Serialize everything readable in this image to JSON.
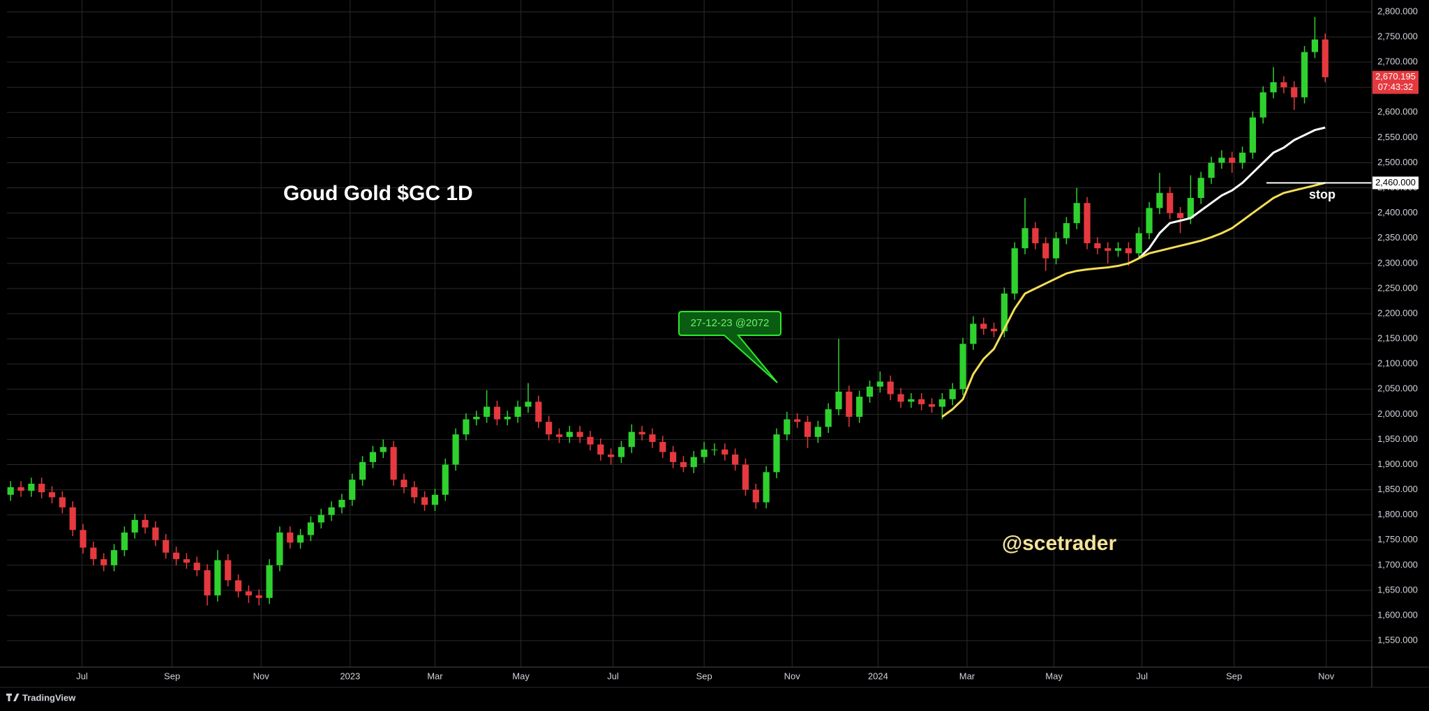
{
  "chart_data": {
    "type": "candlestick",
    "title": "Goud Gold $GC 1D",
    "watermark": "@scetrader",
    "annotation": "27-12-23 @2072",
    "stop_label": "stop",
    "brand": "TradingView",
    "countdown": "07:43:32",
    "up_color": "#2fd12f",
    "down_color": "#e5393f",
    "grid": true,
    "xlim": [
      -0.35,
      131.5
    ],
    "xticks": [
      {
        "value": 6.9,
        "label": "Jul"
      },
      {
        "value": 15.6,
        "label": "Sep"
      },
      {
        "value": 24.2,
        "label": "Nov"
      },
      {
        "value": 32.8,
        "label": "2023"
      },
      {
        "value": 41.0,
        "label": "Mar"
      },
      {
        "value": 49.3,
        "label": "May"
      },
      {
        "value": 58.2,
        "label": "Jul"
      },
      {
        "value": 67.0,
        "label": "Sep"
      },
      {
        "value": 75.5,
        "label": "Nov"
      },
      {
        "value": 83.8,
        "label": "2024"
      },
      {
        "value": 92.4,
        "label": "Mar"
      },
      {
        "value": 100.8,
        "label": "May"
      },
      {
        "value": 109.3,
        "label": "Jul"
      },
      {
        "value": 118.2,
        "label": "Sep"
      },
      {
        "value": 127.1,
        "label": "Nov"
      }
    ],
    "ylim": [
      1497.5,
      2823.5
    ],
    "yticks": [
      {
        "value": 1550,
        "label": "1,550.000"
      },
      {
        "value": 1600,
        "label": "1,600.000"
      },
      {
        "value": 1650,
        "label": "1,650.000"
      },
      {
        "value": 1700,
        "label": "1,700.000"
      },
      {
        "value": 1750,
        "label": "1,750.000"
      },
      {
        "value": 1800,
        "label": "1,800.000"
      },
      {
        "value": 1850,
        "label": "1,850.000"
      },
      {
        "value": 1900,
        "label": "1,900.000"
      },
      {
        "value": 1950,
        "label": "1,950.000"
      },
      {
        "value": 2000,
        "label": "2,000.000"
      },
      {
        "value": 2050,
        "label": "2,050.000"
      },
      {
        "value": 2100,
        "label": "2,100.000"
      },
      {
        "value": 2150,
        "label": "2,150.000"
      },
      {
        "value": 2200,
        "label": "2,200.000"
      },
      {
        "value": 2250,
        "label": "2,250.000"
      },
      {
        "value": 2300,
        "label": "2,300.000"
      },
      {
        "value": 2350,
        "label": "2,350.000"
      },
      {
        "value": 2400,
        "label": "2,400.000"
      },
      {
        "value": 2450,
        "label": "2,450.000"
      },
      {
        "value": 2500,
        "label": "2,500.000"
      },
      {
        "value": 2550,
        "label": "2,550.000"
      },
      {
        "value": 2600,
        "label": "2,600.000"
      },
      {
        "value": 2650,
        "label": "2,650.000"
      },
      {
        "value": 2700,
        "label": "2,700.000"
      },
      {
        "value": 2750,
        "label": "2,750.000"
      },
      {
        "value": 2800,
        "label": "2,800.000"
      }
    ],
    "hline": {
      "value": 2460,
      "label": "2,460.000"
    },
    "last_price": {
      "value": 2670.195,
      "label": "2,670.195"
    },
    "open": [
      1840,
      1855,
      1848,
      1862,
      1845,
      1835,
      1815,
      1770,
      1735,
      1712,
      1700,
      1730,
      1765,
      1790,
      1775,
      1750,
      1725,
      1712,
      1705,
      1690,
      1640,
      1710,
      1670,
      1648,
      1640,
      1635,
      1700,
      1765,
      1745,
      1760,
      1785,
      1800,
      1815,
      1830,
      1870,
      1905,
      1925,
      1935,
      1870,
      1855,
      1835,
      1820,
      1840,
      1900,
      1960,
      1990,
      1995,
      2015,
      1990,
      1995,
      2015,
      2025,
      1985,
      1960,
      1955,
      1965,
      1955,
      1940,
      1920,
      1915,
      1935,
      1965,
      1960,
      1945,
      1925,
      1905,
      1895,
      1915,
      1930,
      1930,
      1920,
      1900,
      1850,
      1825,
      1885,
      1960,
      1990,
      1985,
      1955,
      1975,
      2010,
      2045,
      1995,
      2035,
      2055,
      2065,
      2040,
      2025,
      2030,
      2020,
      2015,
      2030,
      2050,
      2140,
      2180,
      2170,
      2165,
      2240,
      2330,
      2370,
      2340,
      2310,
      2350,
      2380,
      2420,
      2340,
      2330,
      2325,
      2330,
      2320,
      2360,
      2410,
      2440,
      2400,
      2390,
      2430,
      2470,
      2500,
      2510,
      2500,
      2520,
      2590,
      2640,
      2660,
      2650,
      2630,
      2720,
      2745
    ],
    "high": [
      1867,
      1867,
      1874,
      1874,
      1857,
      1847,
      1827,
      1782,
      1747,
      1724,
      1742,
      1777,
      1802,
      1802,
      1787,
      1762,
      1737,
      1724,
      1717,
      1702,
      1730,
      1722,
      1682,
      1660,
      1652,
      1712,
      1777,
      1777,
      1772,
      1797,
      1812,
      1827,
      1842,
      1882,
      1917,
      1937,
      1950,
      1947,
      1882,
      1867,
      1847,
      1852,
      1912,
      1972,
      2002,
      2007,
      2048,
      2027,
      2007,
      2027,
      2062,
      2037,
      1997,
      1972,
      1977,
      1977,
      1967,
      1952,
      1932,
      1947,
      1980,
      1977,
      1972,
      1957,
      1937,
      1917,
      1927,
      1945,
      1942,
      1942,
      1932,
      1912,
      1862,
      1897,
      1972,
      2005,
      2002,
      1997,
      1987,
      2022,
      2150,
      2057,
      2047,
      2067,
      2085,
      2077,
      2052,
      2042,
      2042,
      2032,
      2042,
      2062,
      2152,
      2195,
      2192,
      2182,
      2252,
      2342,
      2430,
      2382,
      2352,
      2362,
      2392,
      2450,
      2432,
      2352,
      2342,
      2342,
      2342,
      2372,
      2422,
      2480,
      2452,
      2412,
      2475,
      2482,
      2512,
      2525,
      2522,
      2532,
      2602,
      2652,
      2690,
      2672,
      2662,
      2732,
      2790,
      2757
    ],
    "low": [
      1828,
      1836,
      1836,
      1833,
      1823,
      1803,
      1758,
      1723,
      1700,
      1688,
      1688,
      1718,
      1753,
      1763,
      1738,
      1713,
      1700,
      1693,
      1678,
      1620,
      1628,
      1658,
      1636,
      1625,
      1620,
      1623,
      1688,
      1733,
      1733,
      1748,
      1773,
      1788,
      1803,
      1818,
      1858,
      1893,
      1913,
      1858,
      1843,
      1823,
      1808,
      1808,
      1828,
      1888,
      1948,
      1978,
      1983,
      1978,
      1978,
      1983,
      2003,
      1973,
      1948,
      1943,
      1943,
      1943,
      1928,
      1908,
      1900,
      1903,
      1923,
      1948,
      1933,
      1913,
      1893,
      1885,
      1883,
      1903,
      1918,
      1908,
      1888,
      1838,
      1812,
      1813,
      1873,
      1948,
      1973,
      1933,
      1943,
      1963,
      1998,
      1975,
      1983,
      2023,
      2043,
      2028,
      2013,
      2013,
      2008,
      2003,
      1990,
      2018,
      2038,
      2128,
      2158,
      2153,
      2153,
      2228,
      2318,
      2328,
      2285,
      2298,
      2338,
      2368,
      2328,
      2318,
      2300,
      2313,
      2295,
      2308,
      2348,
      2398,
      2388,
      2360,
      2378,
      2418,
      2458,
      2488,
      2480,
      2488,
      2508,
      2578,
      2628,
      2638,
      2605,
      2618,
      2708,
      2660
    ],
    "close": [
      1855,
      1848,
      1862,
      1845,
      1835,
      1815,
      1770,
      1735,
      1712,
      1700,
      1730,
      1765,
      1790,
      1775,
      1750,
      1725,
      1712,
      1705,
      1690,
      1640,
      1710,
      1670,
      1648,
      1640,
      1635,
      1700,
      1765,
      1745,
      1760,
      1785,
      1800,
      1815,
      1830,
      1870,
      1905,
      1925,
      1935,
      1870,
      1855,
      1835,
      1820,
      1840,
      1900,
      1960,
      1990,
      1995,
      2015,
      1990,
      1995,
      2015,
      2025,
      1985,
      1960,
      1955,
      1965,
      1955,
      1940,
      1920,
      1915,
      1935,
      1965,
      1960,
      1945,
      1925,
      1905,
      1895,
      1915,
      1930,
      1930,
      1920,
      1900,
      1850,
      1825,
      1885,
      1960,
      1990,
      1985,
      1955,
      1975,
      2010,
      2045,
      1995,
      2035,
      2055,
      2065,
      2040,
      2025,
      2030,
      2020,
      2015,
      2030,
      2050,
      2140,
      2180,
      2170,
      2165,
      2240,
      2330,
      2370,
      2340,
      2310,
      2350,
      2380,
      2420,
      2340,
      2330,
      2325,
      2330,
      2320,
      2360,
      2410,
      2440,
      2400,
      2390,
      2430,
      2470,
      2500,
      2510,
      2500,
      2520,
      2590,
      2640,
      2660,
      2650,
      2630,
      2720,
      2745,
      2670
    ],
    "lines": [
      {
        "color": "#ffffff",
        "values": [
          null,
          null,
          null,
          null,
          null,
          null,
          null,
          null,
          null,
          null,
          null,
          null,
          null,
          null,
          null,
          null,
          null,
          null,
          null,
          null,
          null,
          null,
          null,
          null,
          null,
          null,
          null,
          null,
          null,
          null,
          null,
          null,
          null,
          null,
          null,
          null,
          null,
          null,
          null,
          null,
          null,
          null,
          null,
          null,
          null,
          null,
          null,
          null,
          null,
          null,
          null,
          null,
          null,
          null,
          null,
          null,
          null,
          null,
          null,
          null,
          null,
          null,
          null,
          null,
          null,
          null,
          null,
          null,
          null,
          null,
          null,
          null,
          null,
          null,
          null,
          null,
          null,
          null,
          null,
          null,
          null,
          null,
          null,
          null,
          null,
          null,
          null,
          null,
          null,
          null,
          null,
          null,
          null,
          null,
          null,
          null,
          null,
          null,
          null,
          null,
          null,
          null,
          null,
          null,
          null,
          null,
          null,
          null,
          null,
          2310,
          2330,
          2360,
          2380,
          2385,
          2390,
          2405,
          2420,
          2435,
          2445,
          2460,
          2480,
          2500,
          2520,
          2530,
          2545,
          2555,
          2565,
          2570
        ]
      },
      {
        "color": "#f3de55",
        "values": [
          null,
          null,
          null,
          null,
          null,
          null,
          null,
          null,
          null,
          null,
          null,
          null,
          null,
          null,
          null,
          null,
          null,
          null,
          null,
          null,
          null,
          null,
          null,
          null,
          null,
          null,
          null,
          null,
          null,
          null,
          null,
          null,
          null,
          null,
          null,
          null,
          null,
          null,
          null,
          null,
          null,
          null,
          null,
          null,
          null,
          null,
          null,
          null,
          null,
          null,
          null,
          null,
          null,
          null,
          null,
          null,
          null,
          null,
          null,
          null,
          null,
          null,
          null,
          null,
          null,
          null,
          null,
          null,
          null,
          null,
          null,
          null,
          null,
          null,
          null,
          null,
          null,
          null,
          null,
          null,
          null,
          null,
          null,
          null,
          null,
          null,
          null,
          null,
          null,
          null,
          1995,
          2010,
          2030,
          2080,
          2110,
          2130,
          2170,
          2210,
          2240,
          2250,
          2260,
          2270,
          2280,
          2285,
          2288,
          2290,
          2292,
          2295,
          2300,
          2310,
          2320,
          2325,
          2330,
          2335,
          2340,
          2345,
          2352,
          2360,
          2370,
          2385,
          2400,
          2415,
          2430,
          2440,
          2445,
          2450,
          2455,
          2460
        ]
      }
    ]
  }
}
